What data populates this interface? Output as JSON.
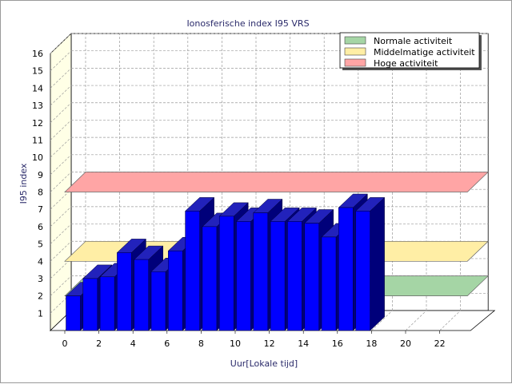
{
  "chart_data": {
    "type": "bar",
    "title": "Ionosferische index I95 VRS",
    "xlabel": "Uur[Lokale tijd]",
    "ylabel": "I95 index",
    "x_ticks": [
      "0",
      "2",
      "4",
      "6",
      "8",
      "10",
      "12",
      "14",
      "16",
      "18",
      "20",
      "22"
    ],
    "y_ticks": [
      "1",
      "2",
      "3",
      "4",
      "5",
      "6",
      "7",
      "8",
      "9",
      "10",
      "11",
      "12",
      "13",
      "14",
      "15",
      "16"
    ],
    "xlim": [
      0,
      24
    ],
    "ylim": [
      0,
      16
    ],
    "grid": true,
    "three_d": true,
    "legend_position": "top-right",
    "series": [
      {
        "name": "I95",
        "color": "#0000ff",
        "x": [
          0,
          1,
          2,
          3,
          4,
          5,
          6,
          7,
          8,
          9,
          10,
          11,
          12,
          13,
          14,
          15,
          16,
          17
        ],
        "values": [
          2.0,
          3.0,
          3.1,
          4.5,
          4.1,
          3.4,
          4.6,
          6.9,
          6.0,
          6.6,
          6.3,
          6.8,
          6.3,
          6.3,
          6.2,
          5.4,
          7.1,
          6.9
        ]
      }
    ],
    "bands": [
      {
        "name": "Normale activiteit",
        "value": 2,
        "color": "#a5d5a5"
      },
      {
        "name": "Middelmatige activiteit",
        "value": 4,
        "color": "#ffeea5"
      },
      {
        "name": "Hoge activiteit",
        "value": 8,
        "color": "#ffa5a5"
      }
    ],
    "colors": {
      "bar_front": "#0000ff",
      "bar_top": "#2222bb",
      "bar_side": "#00007a",
      "back_wall": "#ffffff",
      "side_wall": "#ffffe6",
      "grid": "#9a9a9a",
      "title_text": "#2a2a6a"
    }
  }
}
